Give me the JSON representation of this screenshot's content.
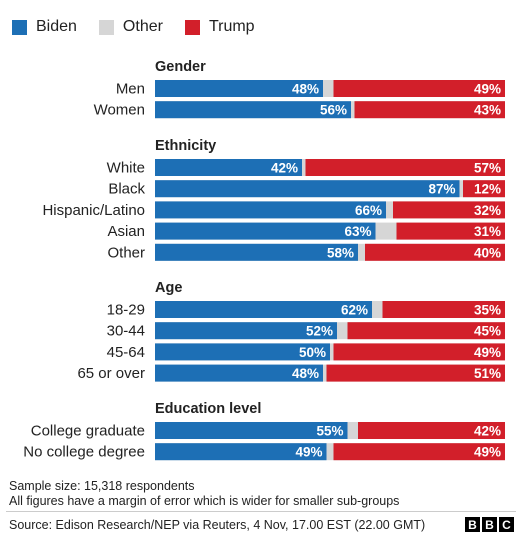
{
  "legend": [
    {
      "label": "Biden",
      "color": "#1d6fb5"
    },
    {
      "label": "Other",
      "color": "#d6d6d6"
    },
    {
      "label": "Trump",
      "color": "#d21f2a"
    }
  ],
  "chart_data": {
    "type": "bar",
    "orientation": "horizontal",
    "stacked": true,
    "xlim": [
      0,
      100
    ],
    "series_order": [
      "Biden",
      "Other",
      "Trump"
    ],
    "groups": [
      {
        "title": "Gender",
        "rows": [
          {
            "label": "Men",
            "biden": 48,
            "trump": 49
          },
          {
            "label": "Women",
            "biden": 56,
            "trump": 43
          }
        ]
      },
      {
        "title": "Ethnicity",
        "rows": [
          {
            "label": "White",
            "biden": 42,
            "trump": 57
          },
          {
            "label": "Black",
            "biden": 87,
            "trump": 12
          },
          {
            "label": "Hispanic/Latino",
            "biden": 66,
            "trump": 32
          },
          {
            "label": "Asian",
            "biden": 63,
            "trump": 31
          },
          {
            "label": "Other",
            "biden": 58,
            "trump": 40
          }
        ]
      },
      {
        "title": "Age",
        "rows": [
          {
            "label": "18-29",
            "biden": 62,
            "trump": 35
          },
          {
            "label": "30-44",
            "biden": 52,
            "trump": 45
          },
          {
            "label": "45-64",
            "biden": 50,
            "trump": 49
          },
          {
            "label": "65 or over",
            "biden": 48,
            "trump": 51
          }
        ]
      },
      {
        "title": "Education level",
        "rows": [
          {
            "label": "College graduate",
            "biden": 55,
            "trump": 42
          },
          {
            "label": "No college degree",
            "biden": 49,
            "trump": 49
          }
        ]
      }
    ]
  },
  "notes": {
    "sample": "Sample size: 15,318 respondents",
    "margin": "All figures have a margin of error which is wider for smaller sub-groups"
  },
  "source": "Source: Edison Research/NEP via Reuters,  4 Nov, 17.00 EST (22.00 GMT)",
  "brand": [
    "B",
    "B",
    "C"
  ]
}
